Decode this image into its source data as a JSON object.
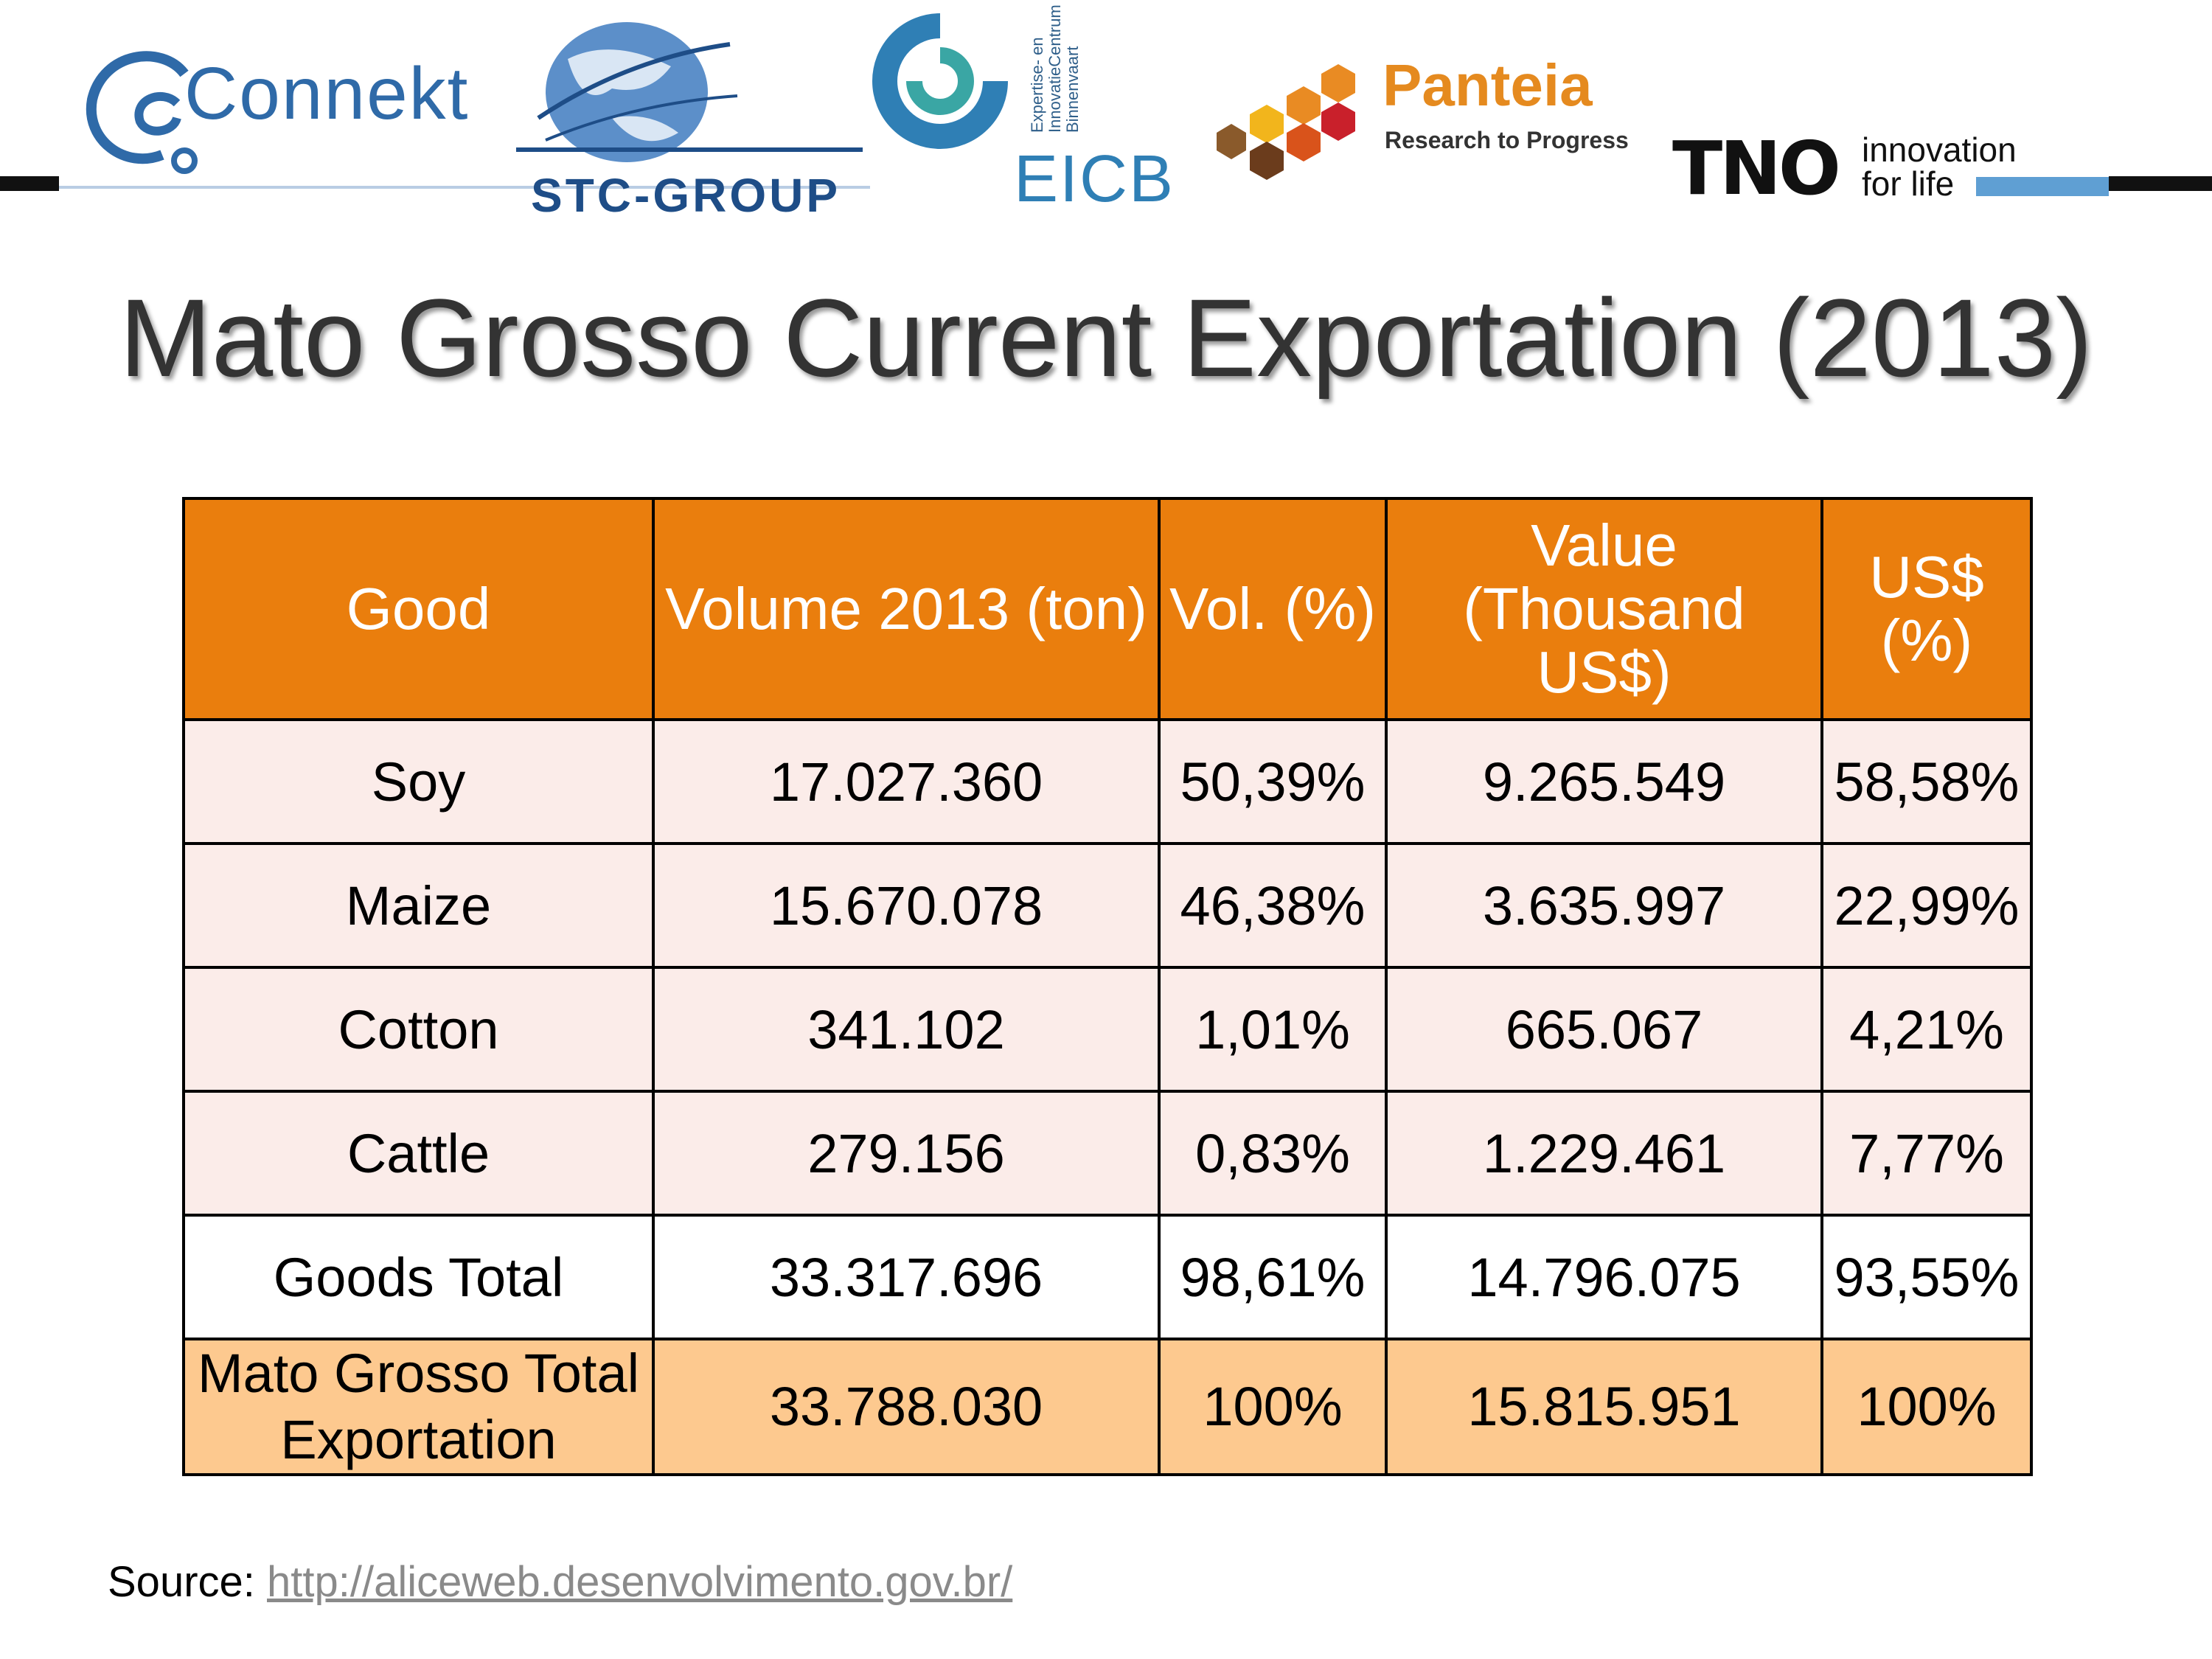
{
  "logos": {
    "connekt": "Connekt",
    "stc": "STC-GROUP",
    "eicb": "EICB",
    "eicb_vertical": [
      "Expertise- en",
      "InnovatieCentrum",
      "Binnenvaart"
    ],
    "panteia_name": "Panteia",
    "panteia_tagline": "Research to Progress",
    "tno_mark": "TNO",
    "tno_tagline_1": "innovation",
    "tno_tagline_2": "for life"
  },
  "title": "Mato Grosso Current Exportation (2013)",
  "table": {
    "headers": {
      "good": "Good",
      "volume": "Volume 2013 (ton)",
      "vol_pct": "Vol. (%)",
      "value_1": "Value",
      "value_2": "(Thousand",
      "value_3": "US$)",
      "usd_pct_1": "US$",
      "usd_pct_2": "(%)"
    },
    "rows": [
      {
        "good": "Soy",
        "volume": "17.027.360",
        "vol_pct": "50,39%",
        "value": "9.265.549",
        "usd_pct": "58,58%"
      },
      {
        "good": "Maize",
        "volume": "15.670.078",
        "vol_pct": "46,38%",
        "value": "3.635.997",
        "usd_pct": "22,99%"
      },
      {
        "good": "Cotton",
        "volume": "341.102",
        "vol_pct": "1,01%",
        "value": "665.067",
        "usd_pct": "4,21%"
      },
      {
        "good": "Cattle",
        "volume": "279.156",
        "vol_pct": "0,83%",
        "value": "1.229.461",
        "usd_pct": "7,77%"
      },
      {
        "good": "Goods Total",
        "volume": "33.317.696",
        "vol_pct": "98,61%",
        "value": "14.796.075",
        "usd_pct": "93,55%"
      }
    ],
    "total_row": {
      "good_1": "Mato Grosso Total",
      "good_2": "Exportation",
      "volume": "33.788.030",
      "vol_pct": "100%",
      "value": "15.815.951",
      "usd_pct": "100%"
    }
  },
  "source": {
    "label": "Source: ",
    "link": "http://aliceweb.desenvolvimento.gov.br/"
  },
  "colors": {
    "header_orange": "#ea7e0d",
    "row_pink": "#fbece9",
    "total_peach": "#fdc98f",
    "title_gray": "#333333"
  }
}
